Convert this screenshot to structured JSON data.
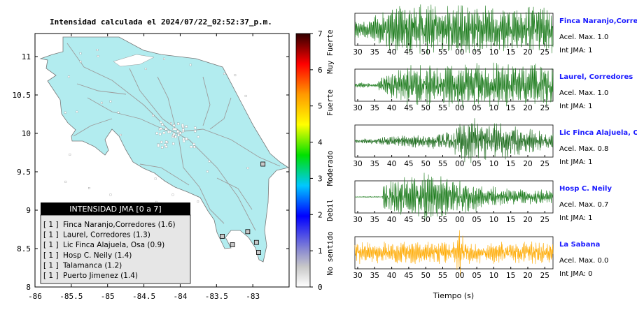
{
  "map": {
    "title": "Intensidad calculada el 2024/07/22_02:52:37_p.m.",
    "lon_ticks": [
      "-86",
      "-85.5",
      "-85",
      "-84.5",
      "-84",
      "-83.5",
      "-83"
    ],
    "lat_ticks": [
      "11",
      "10.5",
      "10",
      "9.5",
      "9",
      "8.5",
      "8"
    ],
    "lon_range": [
      -86,
      -82.5
    ],
    "lat_range": [
      8,
      11.3
    ],
    "land_color": "#b2ecef",
    "legend_title": "INTENSIDAD JMA [0 a 7]",
    "legend_items": [
      {
        "level": "[ 1 ]",
        "label": "Finca Naranjo,Corredores (1.6)"
      },
      {
        "level": "[ 1 ]",
        "label": "Laurel, Corredores (1.3)"
      },
      {
        "level": "[ 1 ]",
        "label": "Lic Finca Alajuela, Osa (0.9)"
      },
      {
        "level": "[ 1 ]",
        "label": "Hosp C. Neily (1.4)"
      },
      {
        "level": "[ 1 ]",
        "label": "Talamanca (1.2)"
      },
      {
        "level": "[ 1 ]",
        "label": "Puerto Jimenez (1.4)"
      }
    ]
  },
  "colorbar": {
    "ticks": [
      "0",
      "1",
      "2",
      "3",
      "4",
      "5",
      "6",
      "7"
    ],
    "categories": [
      "No sentido",
      "Debil",
      "Moderado",
      "Fuerte",
      "Muy Fuerte"
    ]
  },
  "waveforms": {
    "time_ticks": [
      "30",
      "35",
      "40",
      "45",
      "50",
      "55",
      "00",
      "05",
      "10",
      "15",
      "20",
      "25"
    ],
    "xlabel": "Tiempo (s)",
    "stations": [
      {
        "name": "Finca Naranjo,Corredor",
        "accel": "Acel. Max. 1.0",
        "int": "Int JMA: 1",
        "color": "#1a7a1a"
      },
      {
        "name": "Laurel, Corredores",
        "accel": "Acel. Max. 1.0",
        "int": "Int JMA: 1",
        "color": "#1a7a1a"
      },
      {
        "name": "Lic Finca Alajuela, Osa",
        "accel": "Acel. Max. 0.8",
        "int": "Int JMA: 1",
        "color": "#1a6a1a"
      },
      {
        "name": "Hosp C. Neily",
        "accel": "Acel. Max. 0.7",
        "int": "Int JMA: 1",
        "color": "#1a7a1a"
      },
      {
        "name": "La Sabana",
        "accel": "Acel. Max. 0.0",
        "int": "Int JMA: 0",
        "color": "#ffaa00"
      }
    ]
  },
  "chart_data": [
    {
      "type": "scatter",
      "title": "Intensidad calculada el 2024/07/22_02:52:37_p.m.",
      "xlabel": "",
      "ylabel": "",
      "xlim": [
        -86,
        -82.5
      ],
      "ylim": [
        8,
        11.3
      ],
      "legend": "bottom-left",
      "legend_entries": [
        "Finca Naranjo,Corredores (1.6)",
        "Laurel, Corredores (1.3)",
        "Lic Finca Alajuela, Osa (0.9)",
        "Hosp C. Neily (1.4)",
        "Talamanca (1.2)",
        "Puerto Jimenez (1.4)"
      ],
      "stations": [
        {
          "name": "Finca Naranjo,Corredores",
          "lon": -82.95,
          "lat": 8.58,
          "intensity": 1.6
        },
        {
          "name": "Laurel, Corredores",
          "lon": -82.92,
          "lat": 8.45,
          "intensity": 1.3
        },
        {
          "name": "Lic Finca Alajuela, Osa",
          "lon": -83.42,
          "lat": 8.66,
          "intensity": 0.9
        },
        {
          "name": "Hosp C. Neily",
          "lon": -83.07,
          "lat": 8.72,
          "intensity": 1.4
        },
        {
          "name": "Talamanca",
          "lon": -82.86,
          "lat": 9.6,
          "intensity": 1.2
        },
        {
          "name": "Puerto Jimenez",
          "lon": -83.28,
          "lat": 8.55,
          "intensity": 1.4
        }
      ]
    },
    {
      "type": "line",
      "xlabel": "Tiempo (s)",
      "x_ticks": [
        "30",
        "35",
        "40",
        "45",
        "50",
        "55",
        "00",
        "05",
        "10",
        "15",
        "20",
        "25"
      ],
      "series": [
        {
          "name": "Finca Naranjo,Corredor",
          "max_accel": 1.0,
          "jma": 1
        },
        {
          "name": "Laurel, Corredores",
          "max_accel": 1.0,
          "jma": 1
        },
        {
          "name": "Lic Finca Alajuela, Osa",
          "max_accel": 0.8,
          "jma": 1
        },
        {
          "name": "Hosp C. Neily",
          "max_accel": 0.7,
          "jma": 1
        },
        {
          "name": "La Sabana",
          "max_accel": 0.0,
          "jma": 0
        }
      ]
    }
  ]
}
